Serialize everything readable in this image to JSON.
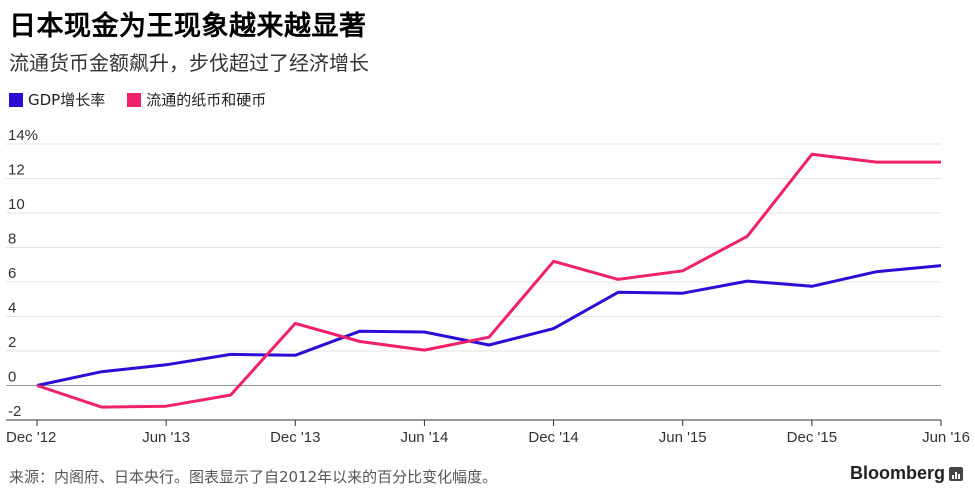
{
  "header": {
    "title": "日本现金为王现象越来越显著",
    "subtitle": "流通货币金额飙升，步伐超过了经济增长"
  },
  "footer": {
    "source": "来源：内阁府、日本央行。图表显示了自2012年以来的百分比变化幅度。",
    "brand": "Bloomberg"
  },
  "chart_data": {
    "type": "line",
    "title": "日本现金为王现象越来越显著",
    "subtitle": "流通货币金额飙升，步伐超过了经济增长",
    "xlabel": "",
    "ylabel": "",
    "x": [
      "Dec '12",
      "Mar '13",
      "Jun '13",
      "Sep '13",
      "Dec '13",
      "Mar '14",
      "Jun '14",
      "Sep '14",
      "Dec '14",
      "Mar '15",
      "Jun '15",
      "Sep '15",
      "Dec '15",
      "Mar '16",
      "Jun '16"
    ],
    "x_tick_labels": [
      "Dec '12",
      "Jun '13",
      "Dec '13",
      "Jun '14",
      "Dec '14",
      "Jun '15",
      "Dec '15",
      "Jun '16"
    ],
    "y_tick_labels": [
      "14%",
      "12",
      "10",
      "8",
      "6",
      "4",
      "2",
      "0",
      "-2"
    ],
    "ylim": [
      -2,
      14
    ],
    "grid": true,
    "legend_position": "top-left",
    "series": [
      {
        "name": "GDP增长率",
        "color": "#2b0ed6",
        "values": [
          0.0,
          0.8,
          1.2,
          1.8,
          1.75,
          3.15,
          3.1,
          2.35,
          3.3,
          5.4,
          5.35,
          6.05,
          5.75,
          6.6,
          6.95
        ]
      },
      {
        "name": "流通的纸币和硬币",
        "color": "#f0206b",
        "values": [
          0.0,
          -1.25,
          -1.2,
          -0.55,
          3.6,
          2.55,
          2.05,
          2.8,
          7.2,
          6.15,
          6.65,
          8.65,
          13.4,
          12.95,
          12.95
        ]
      }
    ]
  }
}
